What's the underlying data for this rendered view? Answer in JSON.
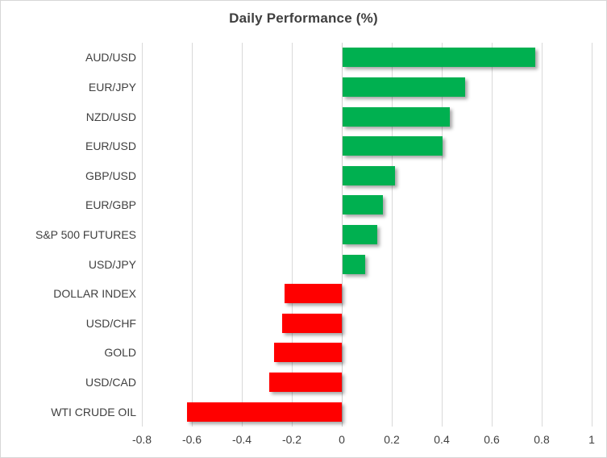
{
  "window": {
    "background": "#ffffff",
    "border_color": "#d7d7d7"
  },
  "chart_data": {
    "type": "bar",
    "orientation": "horizontal",
    "title": "Daily Performance (%)",
    "categories": [
      "AUD/USD",
      "EUR/JPY",
      "NZD/USD",
      "EUR/USD",
      "GBP/USD",
      "EUR/GBP",
      "S&P 500 FUTURES",
      "USD/JPY",
      "DOLLAR INDEX",
      "USD/CHF",
      "GOLD",
      "USD/CAD",
      "WTI CRUDE OIL"
    ],
    "values": [
      0.77,
      0.49,
      0.43,
      0.4,
      0.21,
      0.16,
      0.14,
      0.09,
      -0.23,
      -0.24,
      -0.27,
      -0.29,
      -0.62
    ],
    "xlim": [
      -0.8,
      1.0
    ],
    "xticks": [
      -0.8,
      -0.6,
      -0.4,
      -0.2,
      0,
      0.2,
      0.4,
      0.6,
      0.8,
      1
    ],
    "xtick_labels": [
      "-0.8",
      "-0.6",
      "-0.4",
      "-0.2",
      "0",
      "0.2",
      "0.4",
      "0.6",
      "0.8",
      "1"
    ],
    "grid": "vertical-only",
    "legend": "none",
    "colors": {
      "positive": "#00b050",
      "negative": "#ff0000",
      "grid": "#d9d9d9",
      "zero_axis": "#cfcfcf",
      "text": "#404040",
      "title": "#3f3f3f"
    }
  }
}
